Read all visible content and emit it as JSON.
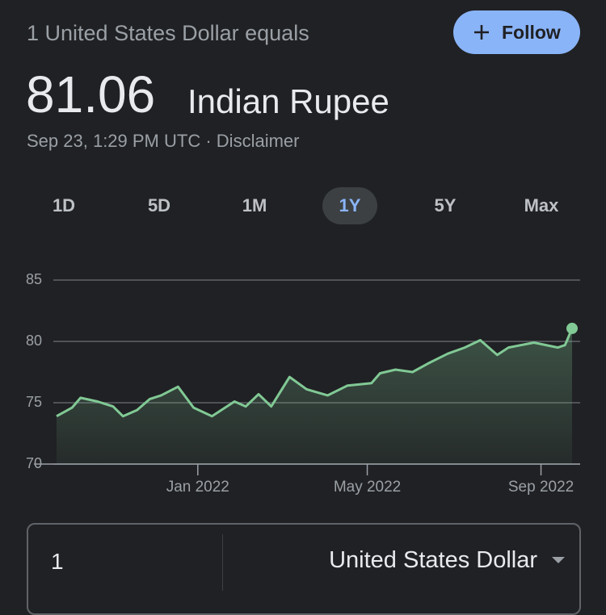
{
  "header": {
    "title": "1 United States Dollar equals",
    "value": "81.06",
    "currency": "Indian Rupee",
    "timestamp": "Sep 23, 1:29 PM UTC",
    "separator": "·",
    "disclaimer": "Disclaimer",
    "follow": "Follow"
  },
  "tabs": {
    "items": [
      "1D",
      "5D",
      "1M",
      "1Y",
      "5Y",
      "Max"
    ],
    "selected": "1Y"
  },
  "chart_data": {
    "type": "line",
    "color": "#81c995",
    "x": [
      "2021-09-23",
      "2021-10-04",
      "2021-10-10",
      "2021-10-22",
      "2021-11-02",
      "2021-11-09",
      "2021-11-19",
      "2021-11-28",
      "2021-12-06",
      "2021-12-18",
      "2021-12-29",
      "2022-01-11",
      "2022-01-27",
      "2022-02-04",
      "2022-02-13",
      "2022-02-22",
      "2022-03-07",
      "2022-03-19",
      "2022-04-03",
      "2022-04-17",
      "2022-05-04",
      "2022-05-10",
      "2022-05-21",
      "2022-06-02",
      "2022-06-13",
      "2022-06-27",
      "2022-07-09",
      "2022-07-20",
      "2022-08-01",
      "2022-08-09",
      "2022-08-27",
      "2022-09-13",
      "2022-09-18",
      "2022-09-23"
    ],
    "values": [
      73.9,
      74.6,
      75.4,
      75.1,
      74.7,
      73.9,
      74.4,
      75.3,
      75.6,
      76.3,
      74.6,
      73.9,
      75.1,
      74.7,
      75.7,
      74.7,
      77.1,
      76.1,
      75.6,
      76.4,
      76.6,
      77.4,
      77.7,
      77.5,
      78.2,
      79.0,
      79.5,
      80.1,
      78.9,
      79.5,
      79.9,
      79.5,
      79.7,
      81.06
    ],
    "xlim": [
      "2021-09-23",
      "2022-09-23"
    ],
    "xticks": [
      {
        "value": "2022-01-01",
        "label": "Jan 2022"
      },
      {
        "value": "2022-05-01",
        "label": "May 2022"
      },
      {
        "value": "2022-09-01",
        "label": "Sep 2022"
      }
    ],
    "ylim": [
      70,
      85
    ],
    "yticks": [
      70,
      75,
      80,
      85
    ],
    "grid": true
  },
  "converter": {
    "amount": "1",
    "currency": "United States Dollar"
  }
}
